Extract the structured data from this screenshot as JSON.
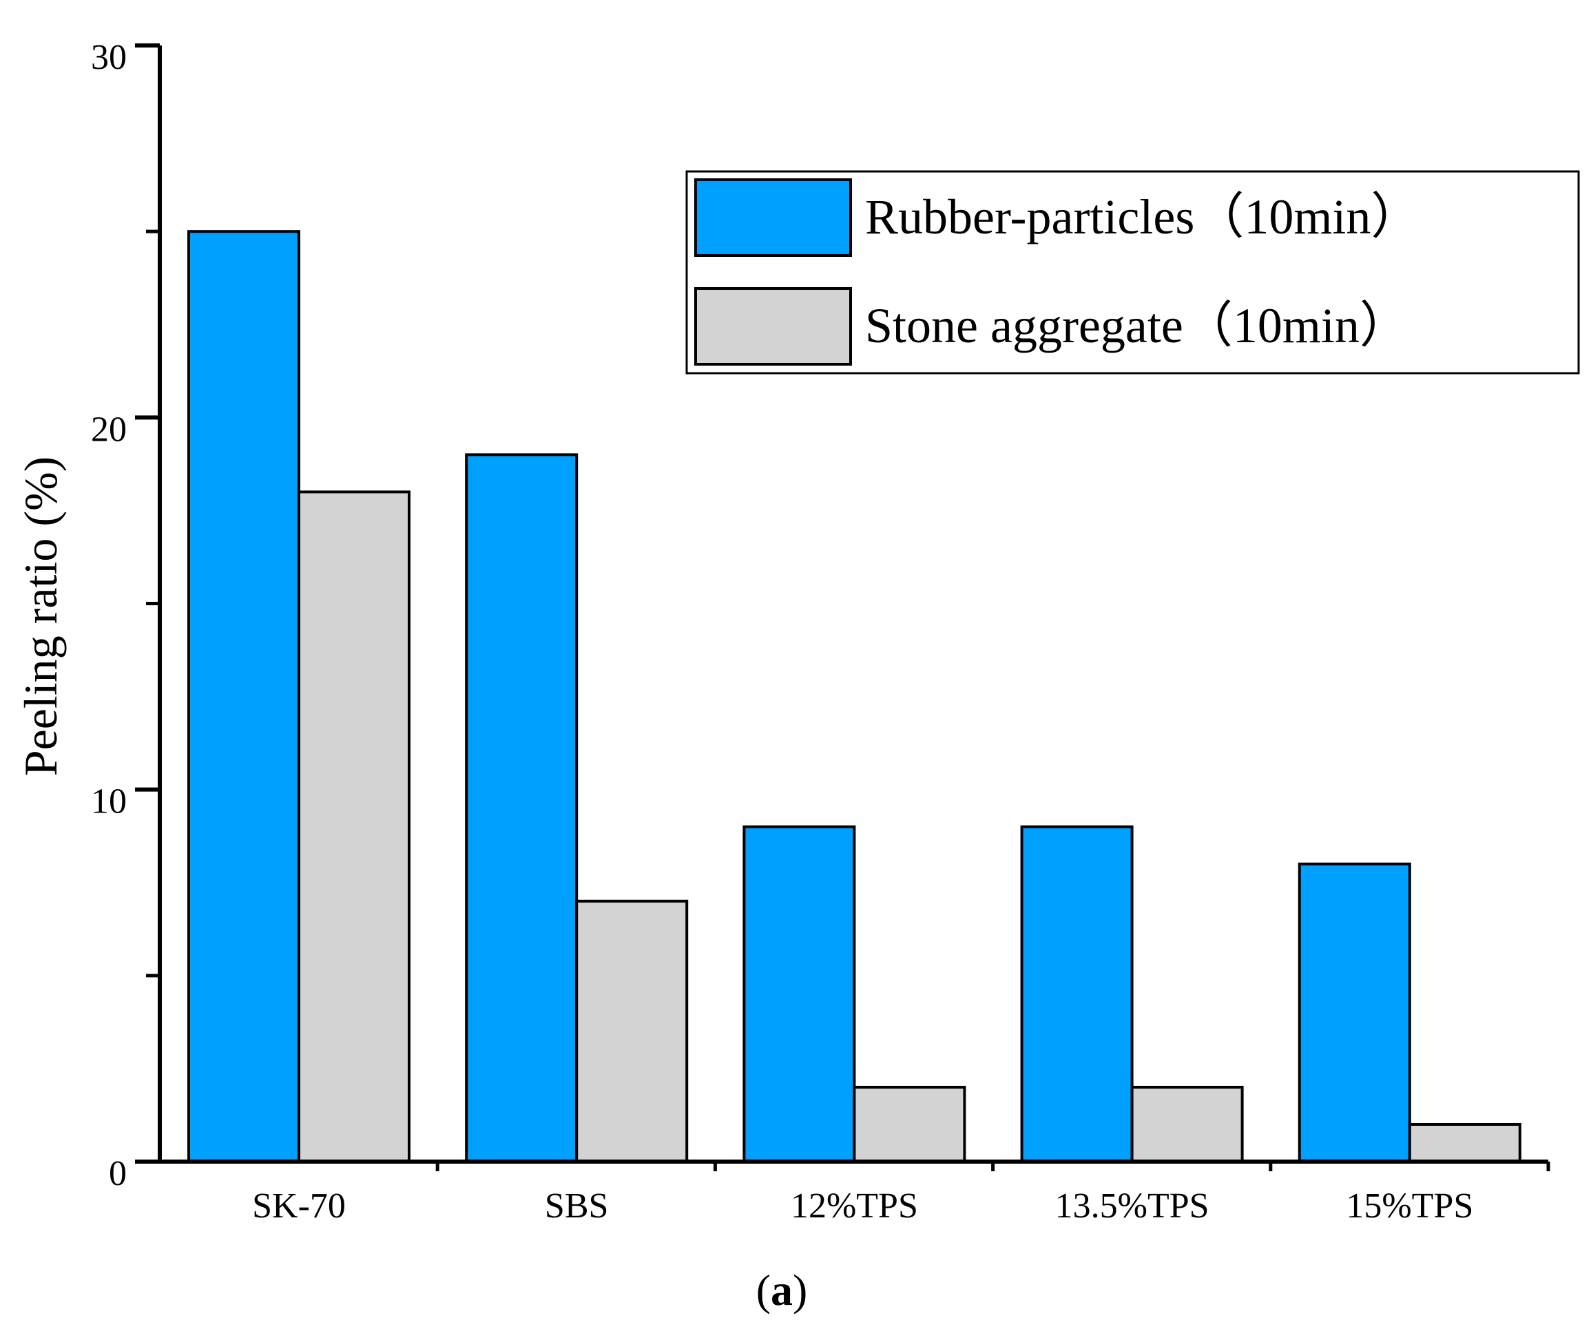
{
  "chart_data": {
    "type": "bar",
    "categories": [
      "SK-70",
      "SBS",
      "12%TPS",
      "13.5%TPS",
      "15%TPS"
    ],
    "series": [
      {
        "name": "Rubber-particles（10min）",
        "values": [
          25,
          19,
          9,
          9,
          8
        ],
        "color": "#00a0ff"
      },
      {
        "name": "Stone aggregate（10min）",
        "values": [
          18,
          7,
          2,
          2,
          1
        ],
        "color": "#d3d3d3"
      }
    ],
    "ylabel": "Peeling ratio (%)",
    "ylim": [
      0,
      30
    ],
    "yticks_major": [
      0,
      10,
      20,
      30
    ],
    "yticks_minor": [
      5,
      15,
      25
    ],
    "grid": false,
    "legend_position": "top-right",
    "panel_label": "(a)",
    "panel_label_bold": "a"
  }
}
